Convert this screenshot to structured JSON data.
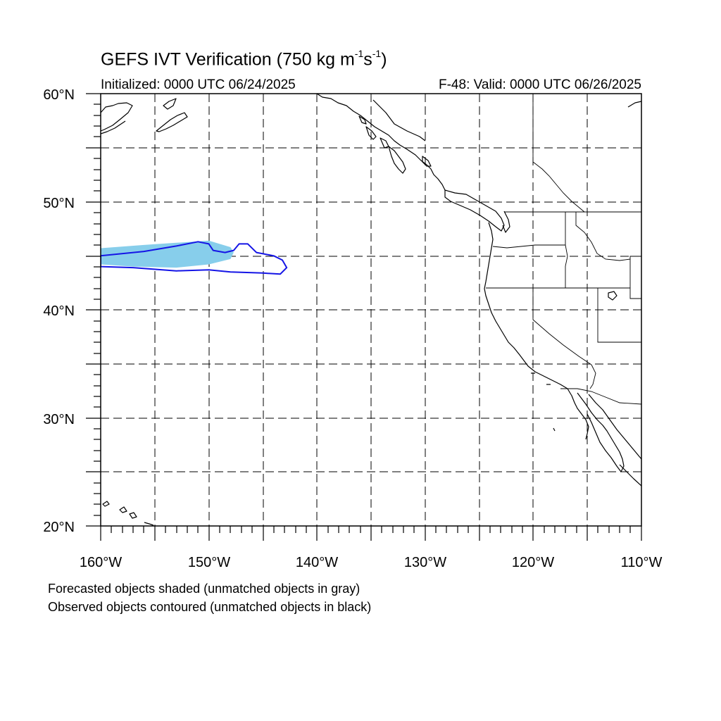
{
  "title": {
    "main": "GEFS IVT Verification (750 kg m",
    "exp1": "-1",
    "mid": "s",
    "exp2": "-1",
    "close": ")"
  },
  "subtitle": {
    "left": "Initialized: 0000 UTC 06/24/2025",
    "right": "F-48: Valid: 0000 UTC 06/26/2025"
  },
  "map": {
    "lon_range": [
      -160,
      -110
    ],
    "lat_range": [
      20,
      60
    ],
    "grid": "dashed",
    "lat_labels": [
      "20°N",
      "30°N",
      "40°N",
      "50°N",
      "60°N"
    ],
    "lon_labels": [
      "160°W",
      "150°W",
      "140°W",
      "130°W",
      "120°W",
      "110°W"
    ],
    "colors": {
      "forecast_fill": "#87ceeb",
      "observed_contour": "#1515e6",
      "coast": "#000000",
      "grid": "#000000"
    }
  },
  "objects": {
    "forecast_matched": [
      [
        -160,
        45.7
      ],
      [
        -156,
        46.0
      ],
      [
        -153,
        46.2
      ],
      [
        -150,
        46.4
      ],
      [
        -148,
        45.8
      ],
      [
        -147.7,
        45.3
      ],
      [
        -148,
        44.7
      ],
      [
        -150,
        44.2
      ],
      [
        -153,
        43.9
      ],
      [
        -157,
        44.0
      ],
      [
        -160,
        44.2
      ]
    ],
    "observed_matched": [
      [
        -160,
        45.0
      ],
      [
        -156,
        45.4
      ],
      [
        -153,
        45.9
      ],
      [
        -151,
        46.3
      ],
      [
        -150,
        46.1
      ],
      [
        -149.6,
        45.5
      ],
      [
        -148.5,
        45.3
      ],
      [
        -147.7,
        45.5
      ],
      [
        -147.2,
        46.1
      ],
      [
        -146.4,
        46.1
      ],
      [
        -145.6,
        45.3
      ],
      [
        -144,
        45.0
      ],
      [
        -143.2,
        44.6
      ],
      [
        -142.8,
        43.9
      ],
      [
        -143.4,
        43.3
      ],
      [
        -145,
        43.4
      ],
      [
        -148,
        43.5
      ],
      [
        -150,
        43.7
      ],
      [
        -153,
        43.6
      ],
      [
        -157,
        43.9
      ],
      [
        -160,
        44.0
      ]
    ]
  },
  "footnotes": [
    "Forecasted objects shaded (unmatched objects in gray)",
    "Observed objects contoured (unmatched objects in black)"
  ]
}
